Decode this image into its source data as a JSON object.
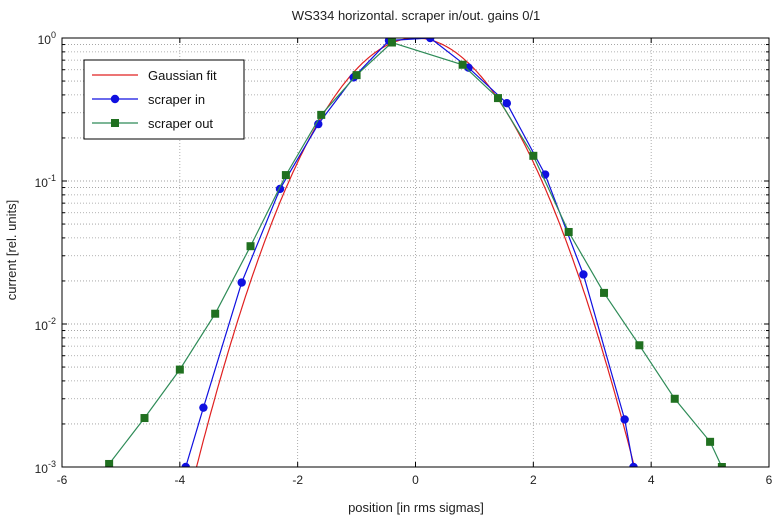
{
  "chart_data": {
    "type": "line",
    "title": "WS334 horizontal.  scraper in/out.  gains 0/1",
    "xlabel": "position [in rms sigmas]",
    "ylabel": "current [rel. units]",
    "xlim": [
      -6,
      6
    ],
    "ylim": [
      0.001,
      1
    ],
    "yscale": "log",
    "grid": true,
    "legend_position": "top-left",
    "x_ticks": [
      -6,
      -4,
      -2,
      0,
      2,
      4,
      6
    ],
    "x_tick_labels": [
      "-6",
      "-4",
      "-2",
      "0",
      "2",
      "4",
      "6"
    ],
    "y_ticks": [
      {
        "value": 1,
        "base": "10",
        "exp": "0"
      },
      {
        "value": 0.1,
        "base": "10",
        "exp": "-1"
      },
      {
        "value": 0.01,
        "base": "10",
        "exp": "-2"
      },
      {
        "value": 0.001,
        "base": "10",
        "exp": "-3"
      }
    ],
    "series": [
      {
        "name": "Gaussian fit",
        "color": "#e02020",
        "marker": "none",
        "gaussian": {
          "amplitude": 1.0,
          "mu": 0.0,
          "sigma": 1.0,
          "x_range": [
            -3.72,
            3.72
          ]
        }
      },
      {
        "name": "scraper in",
        "color": "#1010e0",
        "marker": "circle",
        "x": [
          -3.9,
          -3.6,
          -2.95,
          -2.3,
          -1.65,
          -1.05,
          -0.45,
          0.25,
          0.9,
          1.55,
          2.2,
          2.85,
          3.55,
          3.7
        ],
        "y": [
          0.001,
          0.0026,
          0.0195,
          0.088,
          0.25,
          0.53,
          0.96,
          1.0,
          0.62,
          0.35,
          0.111,
          0.0222,
          0.00215,
          0.001
        ]
      },
      {
        "name": "scraper out",
        "color": "#2e8b57",
        "marker_color": "#207020",
        "marker": "square",
        "x": [
          -5.2,
          -4.6,
          -4.0,
          -3.4,
          -2.8,
          -2.2,
          -1.6,
          -1.0,
          -0.4,
          0.8,
          1.4,
          2.0,
          2.6,
          3.2,
          3.8,
          4.4,
          5.0,
          5.2
        ],
        "y": [
          0.00105,
          0.0022,
          0.0048,
          0.0118,
          0.035,
          0.11,
          0.29,
          0.55,
          0.93,
          0.65,
          0.38,
          0.15,
          0.044,
          0.0165,
          0.0071,
          0.003,
          0.0015,
          0.001
        ]
      }
    ]
  }
}
